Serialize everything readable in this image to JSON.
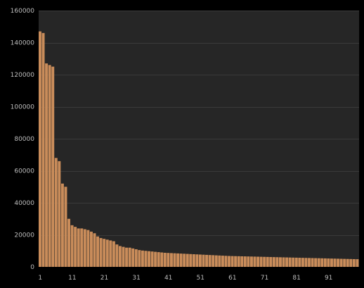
{
  "chart_data": {
    "type": "bar",
    "title": "",
    "xlabel": "",
    "ylabel": "",
    "ylim": [
      0,
      160000
    ],
    "yticks": [
      0,
      20000,
      40000,
      60000,
      80000,
      100000,
      120000,
      140000,
      160000
    ],
    "ytick_labels": [
      "0",
      "20000",
      "40000",
      "60000",
      "80000",
      "100000",
      "120000",
      "140000",
      "160000"
    ],
    "xticks": [
      1,
      11,
      21,
      31,
      41,
      51,
      61,
      71,
      81,
      91
    ],
    "xtick_labels": [
      "1",
      "11",
      "21",
      "31",
      "41",
      "51",
      "61",
      "71",
      "81",
      "91"
    ],
    "grid": true,
    "legend": "none",
    "colors": {
      "background": "#000000",
      "plot_area": "#262626",
      "bar": "#c98c5a",
      "grid": "#3a3a3a",
      "tick_text": "#bdbdbd"
    },
    "categories": [
      1,
      2,
      3,
      4,
      5,
      6,
      7,
      8,
      9,
      10,
      11,
      12,
      13,
      14,
      15,
      16,
      17,
      18,
      19,
      20,
      21,
      22,
      23,
      24,
      25,
      26,
      27,
      28,
      29,
      30,
      31,
      32,
      33,
      34,
      35,
      36,
      37,
      38,
      39,
      40,
      41,
      42,
      43,
      44,
      45,
      46,
      47,
      48,
      49,
      50,
      51,
      52,
      53,
      54,
      55,
      56,
      57,
      58,
      59,
      60,
      61,
      62,
      63,
      64,
      65,
      66,
      67,
      68,
      69,
      70,
      71,
      72,
      73,
      74,
      75,
      76,
      77,
      78,
      79,
      80,
      81,
      82,
      83,
      84,
      85,
      86,
      87,
      88,
      89,
      90,
      91,
      92,
      93,
      94,
      95,
      96,
      97,
      98,
      99,
      100
    ],
    "values": [
      147000,
      146000,
      127000,
      126000,
      125000,
      68000,
      66000,
      52000,
      50000,
      30000,
      26000,
      25000,
      24000,
      24000,
      23500,
      23000,
      22000,
      21000,
      19000,
      18000,
      17500,
      17000,
      16500,
      16000,
      14000,
      13000,
      12500,
      12000,
      12000,
      11500,
      11000,
      10500,
      10200,
      10000,
      9800,
      9600,
      9400,
      9200,
      9000,
      8800,
      8700,
      8600,
      8500,
      8400,
      8300,
      8200,
      8100,
      8000,
      7900,
      7800,
      7700,
      7600,
      7500,
      7400,
      7300,
      7200,
      7100,
      7000,
      6900,
      6800,
      6750,
      6700,
      6650,
      6600,
      6550,
      6500,
      6450,
      6400,
      6350,
      6300,
      6250,
      6200,
      6150,
      6100,
      6050,
      6000,
      5950,
      5900,
      5850,
      5800,
      5750,
      5700,
      5650,
      5600,
      5550,
      5500,
      5450,
      5400,
      5350,
      5300,
      5250,
      5200,
      5150,
      5100,
      5050,
      5000,
      4950,
      4900,
      4850,
      4800
    ]
  }
}
